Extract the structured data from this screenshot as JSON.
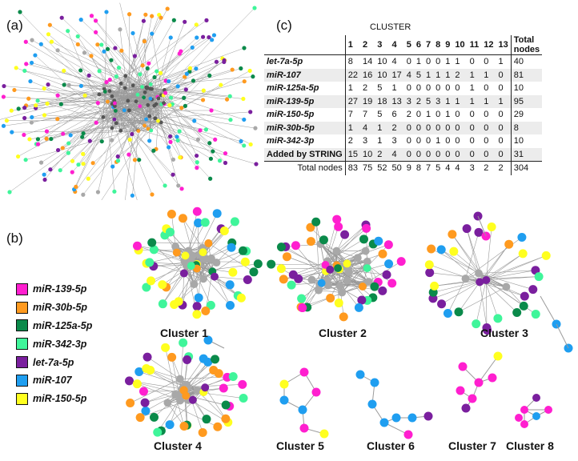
{
  "panels": {
    "a": "(a)",
    "b": "(b)",
    "c": "(c)"
  },
  "table": {
    "title": "CLUSTER",
    "columns": [
      "1",
      "2",
      "3",
      "4",
      "5",
      "6",
      "7",
      "8",
      "9",
      "10",
      "11",
      "12",
      "13"
    ],
    "total_header_line1": "Total",
    "total_header_line2": "nodes",
    "rows": [
      {
        "label": "let-7a-5p",
        "values": [
          "8",
          "14",
          "10",
          "4",
          "0",
          "1",
          "0",
          "0",
          "1",
          "1",
          "0",
          "0",
          "1"
        ],
        "total": "40"
      },
      {
        "label": "miR-107",
        "values": [
          "22",
          "16",
          "10",
          "17",
          "4",
          "5",
          "1",
          "1",
          "1",
          "2",
          "1",
          "1",
          "0"
        ],
        "total": "81"
      },
      {
        "label": "miR-125a-5p",
        "values": [
          "1",
          "2",
          "5",
          "1",
          "0",
          "0",
          "0",
          "0",
          "0",
          "0",
          "1",
          "0",
          "0"
        ],
        "total": "10"
      },
      {
        "label": "miR-139-5p",
        "values": [
          "27",
          "19",
          "18",
          "13",
          "3",
          "2",
          "5",
          "3",
          "1",
          "1",
          "1",
          "1",
          "1"
        ],
        "total": "95"
      },
      {
        "label": "miR-150-5p",
        "values": [
          "7",
          "7",
          "5",
          "6",
          "2",
          "0",
          "1",
          "0",
          "1",
          "0",
          "0",
          "0",
          "0"
        ],
        "total": "29"
      },
      {
        "label": "miR-30b-5p",
        "values": [
          "1",
          "4",
          "1",
          "2",
          "0",
          "0",
          "0",
          "0",
          "0",
          "0",
          "0",
          "0",
          "0"
        ],
        "total": "8"
      },
      {
        "label": "miR-342-3p",
        "values": [
          "2",
          "3",
          "1",
          "3",
          "0",
          "0",
          "0",
          "1",
          "0",
          "0",
          "0",
          "0",
          "0"
        ],
        "total": "10"
      },
      {
        "label": "Added by STRING",
        "values": [
          "15",
          "10",
          "2",
          "4",
          "0",
          "0",
          "0",
          "0",
          "0",
          "0",
          "0",
          "0",
          "0"
        ],
        "total": "31"
      }
    ],
    "totals_label": "Total nodes",
    "totals": [
      "83",
      "75",
      "52",
      "50",
      "9",
      "8",
      "7",
      "5",
      "4",
      "4",
      "3",
      "2",
      "2"
    ],
    "grand_total": "304"
  },
  "legend": [
    {
      "label": "miR-139-5p",
      "color": "#ff1fcf"
    },
    {
      "label": "miR-30b-5p",
      "color": "#ff9a1f"
    },
    {
      "label": "miR-125a-5p",
      "color": "#0a8a4a"
    },
    {
      "label": "miR-342-3p",
      "color": "#3ff59a"
    },
    {
      "label": "let-7a-5p",
      "color": "#7a1f9e"
    },
    {
      "label": "miR-107",
      "color": "#1f9ef0"
    },
    {
      "label": "miR-150-5p",
      "color": "#ffff1f"
    }
  ],
  "string_color": "#a8a8a8",
  "edge_color": "#9a9a9a",
  "clusters": [
    {
      "label": "Cluster 1"
    },
    {
      "label": "Cluster 2"
    },
    {
      "label": "Cluster 3"
    },
    {
      "label": "Cluster 4"
    },
    {
      "label": "Cluster 5"
    },
    {
      "label": "Cluster 6"
    },
    {
      "label": "Cluster 7"
    },
    {
      "label": "Cluster 8"
    }
  ]
}
